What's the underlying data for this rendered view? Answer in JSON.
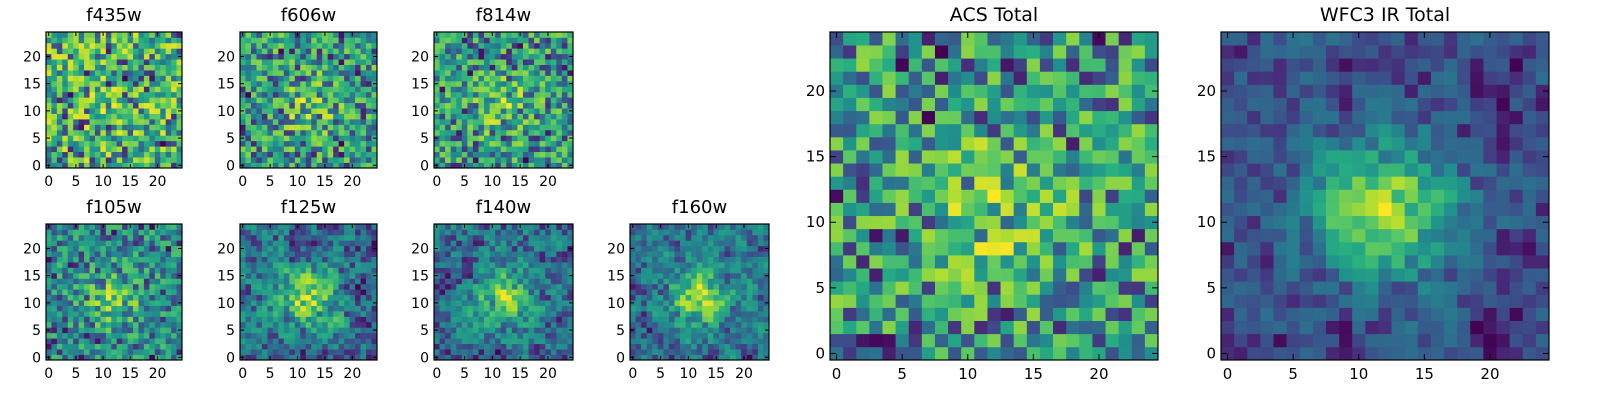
{
  "colormap": "viridis",
  "colors": {
    "low": "#440154",
    "mid": "#21918c",
    "high": "#fde725",
    "frame": "#000000"
  },
  "chart_data": [
    {
      "type": "heatmap",
      "title": "f435w",
      "size": 25,
      "xticks": [
        0,
        5,
        10,
        15,
        20
      ],
      "yticks": [
        0,
        5,
        10,
        15,
        20
      ],
      "xlim": [
        0,
        24
      ],
      "ylim": [
        0,
        24
      ],
      "grid": false,
      "seed": 11,
      "noise": 0.95,
      "blob": 0.05
    },
    {
      "type": "heatmap",
      "title": "f606w",
      "size": 25,
      "xticks": [
        0,
        5,
        10,
        15,
        20
      ],
      "yticks": [
        0,
        5,
        10,
        15,
        20
      ],
      "xlim": [
        0,
        24
      ],
      "ylim": [
        0,
        24
      ],
      "grid": false,
      "seed": 23,
      "noise": 0.85,
      "blob": 0.2
    },
    {
      "type": "heatmap",
      "title": "f814w",
      "size": 25,
      "xticks": [
        0,
        5,
        10,
        15,
        20
      ],
      "yticks": [
        0,
        5,
        10,
        15,
        20
      ],
      "xlim": [
        0,
        24
      ],
      "ylim": [
        0,
        24
      ],
      "grid": false,
      "seed": 37,
      "noise": 0.85,
      "blob": 0.2
    },
    {
      "type": "heatmap",
      "title": "f105w",
      "size": 25,
      "xticks": [
        0,
        5,
        10,
        15,
        20
      ],
      "yticks": [
        0,
        5,
        10,
        15,
        20
      ],
      "xlim": [
        0,
        24
      ],
      "ylim": [
        0,
        24
      ],
      "grid": false,
      "seed": 41,
      "noise": 0.75,
      "blob": 0.3
    },
    {
      "type": "heatmap",
      "title": "f125w",
      "size": 25,
      "xticks": [
        0,
        5,
        10,
        15,
        20
      ],
      "yticks": [
        0,
        5,
        10,
        15,
        20
      ],
      "xlim": [
        0,
        24
      ],
      "ylim": [
        0,
        24
      ],
      "grid": false,
      "seed": 53,
      "noise": 0.7,
      "blob": 0.35
    },
    {
      "type": "heatmap",
      "title": "f140w",
      "size": 25,
      "xticks": [
        0,
        5,
        10,
        15,
        20
      ],
      "yticks": [
        0,
        5,
        10,
        15,
        20
      ],
      "xlim": [
        0,
        24
      ],
      "ylim": [
        0,
        24
      ],
      "grid": false,
      "seed": 67,
      "noise": 0.7,
      "blob": 0.35
    },
    {
      "type": "heatmap",
      "title": "f160w",
      "size": 25,
      "xticks": [
        0,
        5,
        10,
        15,
        20
      ],
      "yticks": [
        0,
        5,
        10,
        15,
        20
      ],
      "xlim": [
        0,
        24
      ],
      "ylim": [
        0,
        24
      ],
      "grid": false,
      "seed": 79,
      "noise": 0.65,
      "blob": 0.4
    },
    {
      "type": "heatmap",
      "title": "ACS Total",
      "size": 25,
      "xticks": [
        0,
        5,
        10,
        15,
        20
      ],
      "yticks": [
        0,
        5,
        10,
        15,
        20
      ],
      "xlim": [
        0,
        24
      ],
      "ylim": [
        0,
        24
      ],
      "grid": false,
      "seed": 97,
      "noise": 0.85,
      "blob": 0.2
    },
    {
      "type": "heatmap",
      "title": "WFC3 IR Total",
      "size": 25,
      "xticks": [
        0,
        5,
        10,
        15,
        20
      ],
      "yticks": [
        0,
        5,
        10,
        15,
        20
      ],
      "xlim": [
        0,
        24
      ],
      "ylim": [
        0,
        24
      ],
      "grid": false,
      "seed": 131,
      "noise": 0.55,
      "blob": 0.6
    }
  ]
}
